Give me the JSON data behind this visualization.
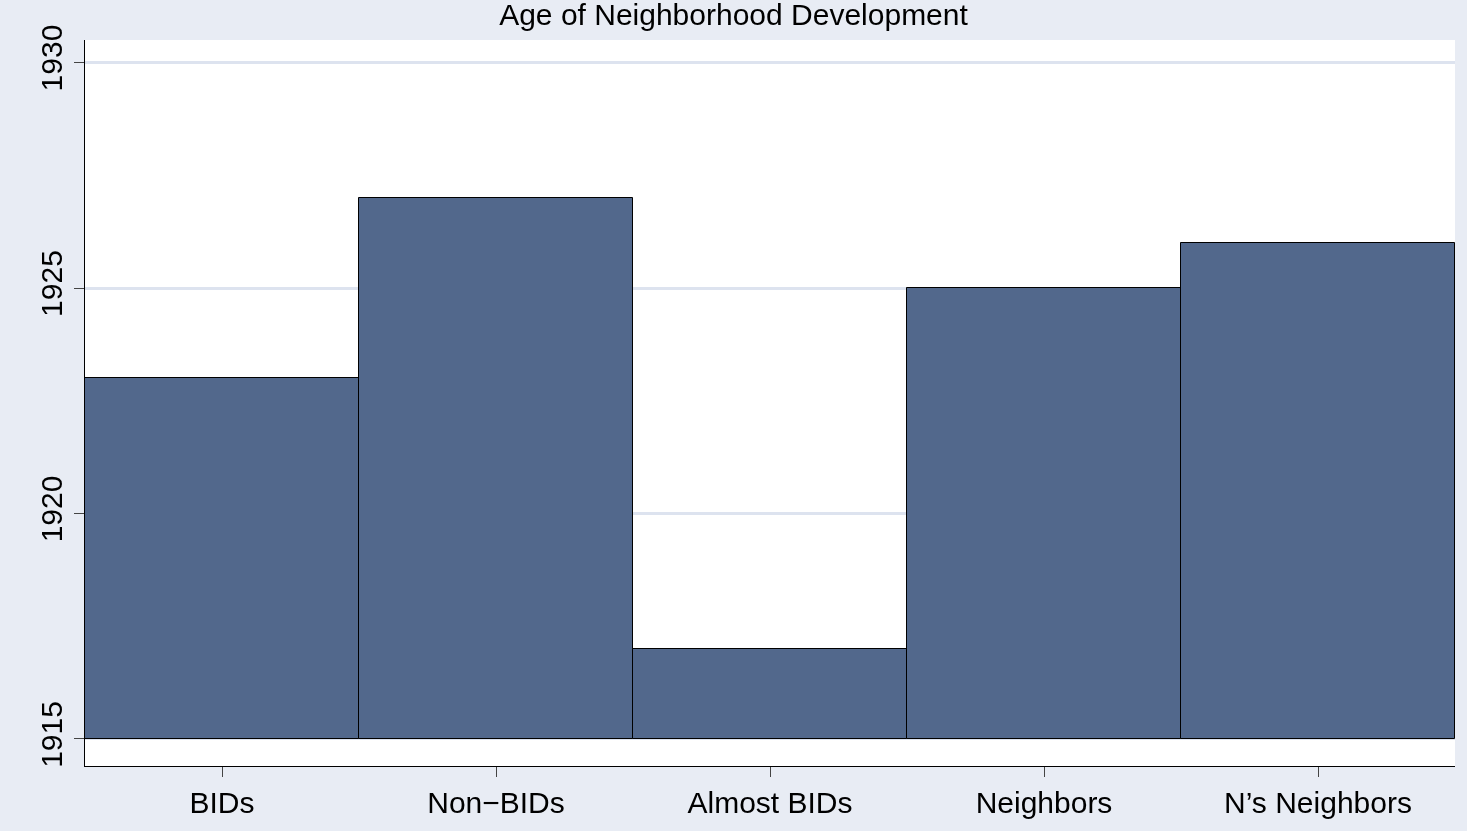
{
  "chart_data": {
    "type": "bar",
    "title": "Age of Neighborhood Development",
    "categories": [
      "BIDs",
      "Non−BIDs",
      "Almost BIDs",
      "Neighbors",
      "N’s Neighbors"
    ],
    "base": [
      1915,
      1915,
      1915,
      1915,
      1915
    ],
    "values": [
      8,
      12,
      2,
      10,
      11
    ],
    "color": "#52688c",
    "ylim": [
      1914.4,
      1930.5
    ],
    "yticks": [
      1915,
      1920,
      1925,
      1930
    ],
    "grid": "y"
  }
}
